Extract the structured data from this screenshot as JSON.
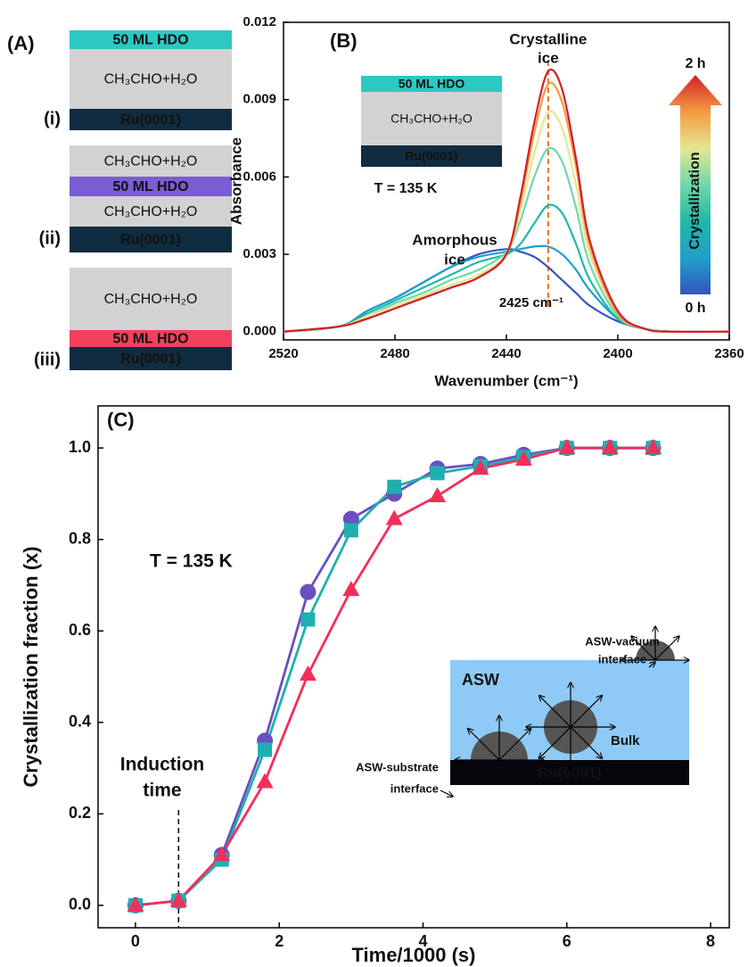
{
  "panel_a": {
    "label": "(A)",
    "stacks": [
      {
        "label": "(i)",
        "layers": [
          {
            "text": "50 ML HDO",
            "color": "#2cc8c2"
          },
          {
            "text": "CH₃CHO+H₂O",
            "color": "#d2d2d2"
          },
          {
            "text": "Ru(0001)",
            "color": "#102c40"
          }
        ]
      },
      {
        "label": "(ii)",
        "layers": [
          {
            "text": "CH₃CHO+H₂O",
            "color": "#d2d2d2"
          },
          {
            "text": "50 ML HDO",
            "color": "#7a5cd4"
          },
          {
            "text": "CH₃CHO+H₂O",
            "color": "#d2d2d2"
          },
          {
            "text": "Ru(0001)",
            "color": "#102c40"
          }
        ]
      },
      {
        "label": "(iii)",
        "layers": [
          {
            "text": "CH₃CHO+H₂O",
            "color": "#d2d2d2"
          },
          {
            "text": "50 ML HDO",
            "color": "#f2405c"
          },
          {
            "text": "Ru(0001)",
            "color": "#102c40"
          }
        ]
      }
    ]
  },
  "chart_data": [
    {
      "type": "line",
      "panel_label": "(B)",
      "x_label": "Wavenumber (cm⁻¹)",
      "y_label": "Absorbance",
      "xlim": [
        2520,
        2360
      ],
      "ylim": [
        -0.00032,
        0.012
      ],
      "xticks": [
        2520,
        2480,
        2440,
        2400,
        2360
      ],
      "yticks": [
        {
          "value": 0,
          "label": "0.000"
        },
        0.003,
        0.006,
        0.009,
        0.012
      ],
      "x": [
        2520,
        2500,
        2490,
        2480,
        2470,
        2460,
        2450,
        2440,
        2435,
        2430,
        2425,
        2420,
        2415,
        2410,
        2400,
        2390,
        2380,
        2360
      ],
      "series": [
        {
          "color": "#3355c0",
          "values": [
            0,
            0.0002,
            0.0008,
            0.0013,
            0.0019,
            0.0025,
            0.003,
            0.0032,
            0.0031,
            0.0029,
            0.0025,
            0.002,
            0.0015,
            0.001,
            0.0004,
            0.0001,
            0,
            0
          ]
        },
        {
          "color": "#1fa0c8",
          "values": [
            0,
            0.0002,
            0.0008,
            0.0013,
            0.0019,
            0.0025,
            0.0029,
            0.0031,
            0.0032,
            0.0033,
            0.0033,
            0.003,
            0.0024,
            0.0016,
            0.0005,
            0.0001,
            0,
            0
          ]
        },
        {
          "color": "#20b8a8",
          "values": [
            0,
            0.0002,
            0.0007,
            0.0012,
            0.0017,
            0.0022,
            0.0027,
            0.003,
            0.0034,
            0.0042,
            0.0049,
            0.0046,
            0.0034,
            0.002,
            0.0005,
            0.0001,
            0,
            0
          ]
        },
        {
          "color": "#70d8a8",
          "values": [
            0,
            0.0002,
            0.0006,
            0.0011,
            0.0015,
            0.002,
            0.0024,
            0.0031,
            0.0043,
            0.006,
            0.0071,
            0.0066,
            0.0048,
            0.0026,
            0.0006,
            0.0001,
            0,
            0
          ]
        },
        {
          "color": "#e6e690",
          "values": [
            0,
            0.0002,
            0.0006,
            0.001,
            0.0014,
            0.0018,
            0.0022,
            0.003,
            0.0047,
            0.0069,
            0.0085,
            0.0079,
            0.0057,
            0.003,
            0.0007,
            0.0001,
            0,
            0
          ]
        },
        {
          "color": "#f59a40",
          "values": [
            0,
            0.0002,
            0.0005,
            0.0009,
            0.0013,
            0.0017,
            0.0021,
            0.003,
            0.005,
            0.0077,
            0.0096,
            0.0089,
            0.0064,
            0.0033,
            0.0007,
            0.0001,
            0,
            0
          ]
        },
        {
          "color": "#d0202a",
          "values": [
            0,
            0.0002,
            0.0005,
            0.0009,
            0.0013,
            0.0017,
            0.0021,
            0.003,
            0.0052,
            0.0081,
            0.0101,
            0.0094,
            0.0067,
            0.0035,
            0.0008,
            0.0001,
            0,
            0
          ]
        }
      ],
      "crystalline_label": [
        "Crystalline",
        "ice"
      ],
      "amorphous_label": [
        "Amorphous",
        "ice"
      ],
      "peak_label": "2425 cm⁻¹",
      "peak_x": 2425,
      "inset": {
        "layers": [
          {
            "text": "50 ML HDO",
            "color": "#2cc8c2"
          },
          {
            "text": "CH₃CHO+H₂O",
            "color": "#d2d2d2"
          },
          {
            "text": "Ru(0001)",
            "color": "#102c40"
          }
        ],
        "temperature": "T = 135 K"
      },
      "colorbar": {
        "top": "2 h",
        "bottom": "0 h",
        "label": "Crystallization"
      }
    },
    {
      "type": "line",
      "panel_label": "(C)",
      "x_label": "Time/1000 (s)",
      "y_label": "Crystallization fraction (x)",
      "xlim": [
        -0.52,
        8.26
      ],
      "ylim": [
        -0.049,
        1.092
      ],
      "xticks": [
        0,
        2,
        4,
        6,
        8
      ],
      "yticks": [
        {
          "value": 0,
          "label": "0.0"
        },
        0.2,
        0.4,
        0.6,
        0.8,
        {
          "value": 1,
          "label": "1.0"
        }
      ],
      "x": [
        0,
        0.6,
        1.2,
        1.8,
        2.4,
        3.0,
        3.6,
        4.2,
        4.8,
        5.4,
        6.0,
        6.6,
        7.2
      ],
      "series": [
        {
          "color": "#6a4fc0",
          "marker": "circle",
          "values": [
            0,
            0.01,
            0.11,
            0.36,
            0.685,
            0.845,
            0.9,
            0.955,
            0.965,
            0.985,
            1,
            1,
            1
          ]
        },
        {
          "color": "#1eb0b0",
          "marker": "square",
          "values": [
            0,
            0.01,
            0.1,
            0.34,
            0.625,
            0.82,
            0.915,
            0.945,
            0.96,
            0.98,
            1,
            1,
            1
          ]
        },
        {
          "color": "#f0305a",
          "marker": "triangle",
          "values": [
            0,
            0.01,
            0.11,
            0.27,
            0.505,
            0.69,
            0.845,
            0.895,
            0.955,
            0.975,
            1,
            1,
            1
          ]
        }
      ],
      "temperature": "T = 135 K",
      "induction_label": [
        "Induction",
        "time"
      ],
      "induction_x": 0.6,
      "inset": {
        "medium": "ASW",
        "substrate": "Ru(0001)",
        "bulk": "Bulk",
        "vacuum_interface": [
          "ASW-vacuum",
          "interface"
        ],
        "substrate_interface": [
          "ASW-substrate",
          "interface"
        ]
      }
    }
  ]
}
